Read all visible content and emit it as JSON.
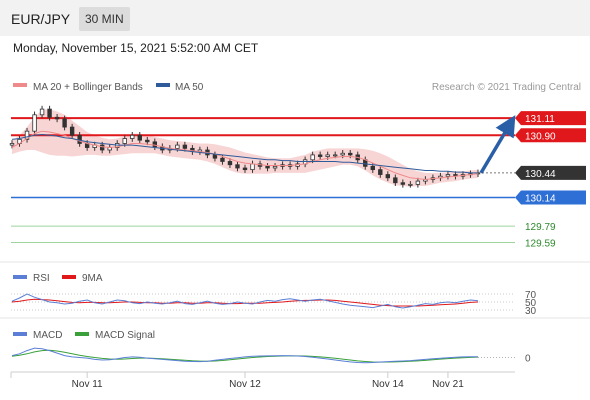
{
  "header": {
    "pair": "EUR/JPY",
    "timeframe": "30 MIN"
  },
  "datetime": "Monday, November 15, 2021 5:52:00 AM CET",
  "credit": "Research © 2021 Trading Central",
  "colors": {
    "resistance": "#e0171b",
    "support": "#2e6fd6",
    "target": "#2d8a2d",
    "last": "#333333",
    "arrow": "#2a5fa8",
    "band": "#f8d5d5"
  },
  "chart_data": [
    {
      "type": "line",
      "panel": "price",
      "legend": [
        {
          "name": "MA 20 + Bollinger Bands",
          "color": "#f08a8a"
        },
        {
          "name": "MA 50",
          "color": "#2f5b9a"
        }
      ],
      "ylim": [
        129.4,
        131.38
      ],
      "levels": [
        {
          "value": 131.11,
          "label": "131.11",
          "kind": "resistance"
        },
        {
          "value": 130.9,
          "label": "130.90",
          "kind": "resistance"
        },
        {
          "value": 130.44,
          "label": "130.44",
          "kind": "last"
        },
        {
          "value": 130.14,
          "label": "130.14",
          "kind": "support"
        },
        {
          "value": 129.79,
          "label": "129.79",
          "kind": "target"
        },
        {
          "value": 129.59,
          "label": "129.59",
          "kind": "target"
        }
      ],
      "close": [
        130.8,
        130.85,
        130.95,
        131.15,
        131.22,
        131.12,
        131.1,
        131.0,
        130.9,
        130.8,
        130.75,
        130.78,
        130.72,
        130.75,
        130.8,
        130.86,
        130.9,
        130.84,
        130.82,
        130.76,
        130.72,
        130.74,
        130.78,
        130.74,
        130.7,
        130.72,
        130.66,
        130.62,
        130.58,
        130.54,
        130.5,
        130.48,
        130.55,
        130.52,
        130.5,
        130.52,
        130.54,
        130.52,
        130.55,
        130.6,
        130.66,
        130.64,
        130.66,
        130.66,
        130.68,
        130.66,
        130.6,
        130.52,
        130.48,
        130.42,
        130.38,
        130.32,
        130.3,
        130.3,
        130.34,
        130.36,
        130.38,
        130.4,
        130.42,
        130.4,
        130.42,
        130.43,
        130.44
      ],
      "ma20": [
        130.75,
        130.8,
        130.86,
        130.92,
        130.95,
        130.94,
        130.92,
        130.9,
        130.86,
        130.83,
        130.8,
        130.78,
        130.76,
        130.75,
        130.76,
        130.78,
        130.8,
        130.8,
        130.79,
        130.78,
        130.76,
        130.74,
        130.73,
        130.72,
        130.71,
        130.7,
        130.69,
        130.67,
        130.64,
        130.61,
        130.58,
        130.56,
        130.55,
        130.54,
        130.53,
        130.53,
        130.53,
        130.53,
        130.54,
        130.55,
        130.58,
        130.6,
        130.62,
        130.63,
        130.64,
        130.64,
        130.63,
        130.6,
        130.56,
        130.52,
        130.48,
        130.44,
        130.41,
        130.38,
        130.37,
        130.36,
        130.37,
        130.38,
        130.39,
        130.4,
        130.41,
        130.42,
        130.43
      ],
      "ma50": [
        130.85,
        130.86,
        130.88,
        130.9,
        130.91,
        130.9,
        130.89,
        130.87,
        130.86,
        130.84,
        130.82,
        130.81,
        130.8,
        130.79,
        130.78,
        130.78,
        130.78,
        130.77,
        130.76,
        130.75,
        130.74,
        130.73,
        130.72,
        130.71,
        130.7,
        130.69,
        130.68,
        130.67,
        130.66,
        130.65,
        130.64,
        130.63,
        130.62,
        130.61,
        130.6,
        130.6,
        130.59,
        130.59,
        130.58,
        130.58,
        130.58,
        130.58,
        130.58,
        130.58,
        130.57,
        130.57,
        130.56,
        130.55,
        130.54,
        130.53,
        130.52,
        130.51,
        130.5,
        130.49,
        130.48,
        130.47,
        130.47,
        130.46,
        130.46,
        130.45,
        130.45,
        130.44,
        130.44
      ],
      "band_width": [
        0.08,
        0.1,
        0.14,
        0.2,
        0.26,
        0.28,
        0.27,
        0.25,
        0.22,
        0.18,
        0.14,
        0.12,
        0.11,
        0.1,
        0.1,
        0.11,
        0.12,
        0.12,
        0.11,
        0.1,
        0.1,
        0.1,
        0.1,
        0.1,
        0.1,
        0.1,
        0.11,
        0.12,
        0.13,
        0.14,
        0.14,
        0.13,
        0.12,
        0.11,
        0.1,
        0.09,
        0.09,
        0.09,
        0.1,
        0.11,
        0.12,
        0.12,
        0.12,
        0.11,
        0.1,
        0.1,
        0.11,
        0.13,
        0.15,
        0.16,
        0.16,
        0.15,
        0.13,
        0.11,
        0.09,
        0.08,
        0.07,
        0.06,
        0.06,
        0.06,
        0.05,
        0.05,
        0.05
      ],
      "forecast": {
        "from": 130.44,
        "to": 131.11
      }
    },
    {
      "type": "line",
      "panel": "rsi",
      "legend": [
        {
          "name": "RSI",
          "color": "#5b7fd6"
        },
        {
          "name": "9MA",
          "color": "#e0171b"
        }
      ],
      "ylim": [
        20,
        80
      ],
      "tick_labels": [
        "70",
        "50",
        "30"
      ],
      "ticks": [
        70,
        50,
        30
      ],
      "rsi": [
        52,
        60,
        70,
        62,
        56,
        50,
        48,
        45,
        47,
        52,
        55,
        48,
        45,
        50,
        55,
        53,
        48,
        46,
        50,
        47,
        45,
        48,
        52,
        46,
        44,
        48,
        52,
        47,
        44,
        46,
        50,
        47,
        45,
        50,
        54,
        52,
        56,
        58,
        55,
        52,
        55,
        57,
        53,
        49,
        45,
        42,
        40,
        38,
        36,
        40,
        44,
        38,
        35,
        38,
        42,
        46,
        44,
        48,
        50,
        48,
        52,
        55,
        53
      ],
      "ma9": [
        50,
        52,
        55,
        57,
        56,
        55,
        53,
        51,
        49,
        48,
        49,
        49,
        48,
        48,
        49,
        50,
        50,
        49,
        48,
        48,
        47,
        47,
        48,
        48,
        47,
        47,
        48,
        48,
        47,
        46,
        46,
        47,
        47,
        47,
        48,
        49,
        50,
        52,
        53,
        54,
        54,
        55,
        55,
        54,
        52,
        50,
        48,
        46,
        44,
        42,
        41,
        40,
        40,
        40,
        40,
        41,
        42,
        43,
        44,
        45,
        47,
        49,
        50
      ]
    },
    {
      "type": "line",
      "panel": "macd",
      "legend": [
        {
          "name": "MACD",
          "color": "#5b7fd6"
        },
        {
          "name": "MACD Signal",
          "color": "#3aa13a"
        }
      ],
      "ylim": [
        -1,
        1
      ],
      "tick_labels": [
        "0"
      ],
      "ticks": [
        0
      ],
      "macd": [
        0.15,
        0.3,
        0.55,
        0.75,
        0.7,
        0.55,
        0.35,
        0.15,
        0.05,
        0.0,
        -0.05,
        -0.15,
        -0.2,
        -0.18,
        -0.1,
        0.0,
        0.05,
        0.02,
        -0.05,
        -0.1,
        -0.15,
        -0.2,
        -0.25,
        -0.3,
        -0.32,
        -0.33,
        -0.3,
        -0.22,
        -0.15,
        -0.08,
        -0.02,
        0.05,
        0.1,
        0.12,
        0.13,
        0.14,
        0.15,
        0.14,
        0.12,
        0.08,
        0.02,
        -0.05,
        -0.12,
        -0.2,
        -0.28,
        -0.35,
        -0.4,
        -0.42,
        -0.4,
        -0.36,
        -0.33,
        -0.3,
        -0.28,
        -0.25,
        -0.2,
        -0.15,
        -0.1,
        -0.06,
        -0.02,
        0.02,
        0.05,
        0.06,
        0.06
      ],
      "signal": [
        0.1,
        0.18,
        0.3,
        0.45,
        0.55,
        0.58,
        0.52,
        0.42,
        0.3,
        0.18,
        0.08,
        0.0,
        -0.07,
        -0.12,
        -0.14,
        -0.12,
        -0.08,
        -0.05,
        -0.05,
        -0.07,
        -0.1,
        -0.14,
        -0.18,
        -0.22,
        -0.26,
        -0.29,
        -0.3,
        -0.28,
        -0.24,
        -0.18,
        -0.12,
        -0.06,
        0.0,
        0.04,
        0.08,
        0.1,
        0.12,
        0.13,
        0.13,
        0.12,
        0.09,
        0.05,
        0.0,
        -0.06,
        -0.13,
        -0.2,
        -0.27,
        -0.32,
        -0.36,
        -0.37,
        -0.36,
        -0.35,
        -0.33,
        -0.3,
        -0.27,
        -0.23,
        -0.18,
        -0.13,
        -0.09,
        -0.05,
        -0.02,
        0.01,
        0.03
      ]
    }
  ],
  "x_axis": {
    "ticks": [
      "Nov 11",
      "Nov 12",
      "Nov 14",
      "Nov 21"
    ],
    "tick_index": [
      10,
      31,
      50,
      58
    ]
  }
}
